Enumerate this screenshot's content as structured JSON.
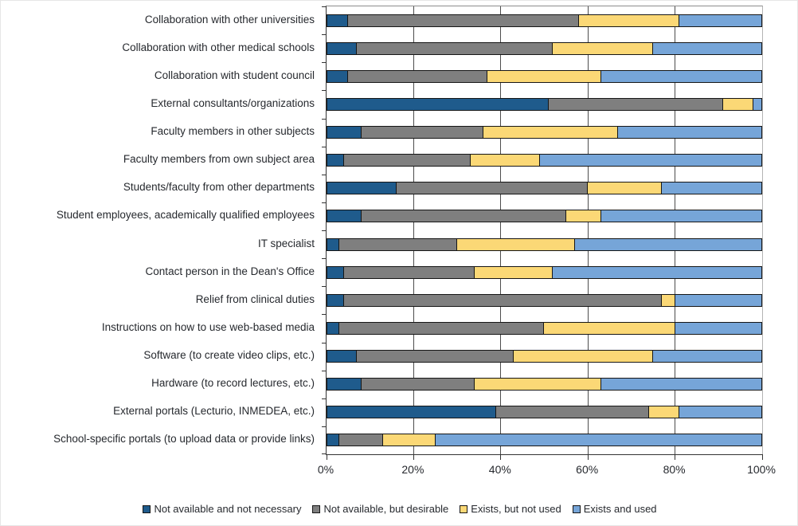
{
  "chart_data": {
    "type": "bar",
    "orientation": "horizontal",
    "stacked": true,
    "title": "",
    "xlabel": "",
    "ylabel": "",
    "xlim": [
      0,
      100
    ],
    "x_tick_labels": [
      "0%",
      "20%",
      "40%",
      "60%",
      "80%",
      "100%"
    ],
    "x_tick_values": [
      0,
      20,
      40,
      60,
      80,
      100
    ],
    "gridlines": [
      20,
      40,
      60,
      80
    ],
    "legend_position": "bottom",
    "categories": [
      "Collaboration with other universities",
      "Collaboration with other medical schools",
      "Collaboration with student council",
      "External consultants/organizations",
      "Faculty members in other subjects",
      "Faculty members from own subject area",
      "Students/faculty from other departments",
      "Student employees, academically qualified employees",
      "IT specialist",
      "Contact person in the Dean's Office",
      "Relief from clinical duties",
      "Instructions on how to use web-based media",
      "Software (to create video clips, etc.)",
      "Hardware (to record lectures, etc.)",
      "External portals (Lecturio, INMEDEA, etc.)",
      "School-specific portals (to upload data or provide links)"
    ],
    "series": [
      {
        "name": "Not available and not necessary",
        "color": "#1F5B8C",
        "values": [
          5,
          7,
          5,
          51,
          8,
          4,
          16,
          8,
          3,
          4,
          4,
          3,
          7,
          8,
          39,
          3
        ]
      },
      {
        "name": "Not available, but desirable",
        "color": "#7F7F7F",
        "values": [
          53,
          45,
          32,
          40,
          28,
          29,
          44,
          47,
          27,
          30,
          73,
          47,
          36,
          26,
          35,
          10
        ]
      },
      {
        "name": "Exists, but not used",
        "color": "#FBD876",
        "values": [
          23,
          23,
          26,
          7,
          31,
          16,
          17,
          8,
          27,
          18,
          3,
          30,
          32,
          29,
          7,
          12
        ]
      },
      {
        "name": "Exists and used",
        "color": "#76A5D8",
        "values": [
          19,
          25,
          37,
          2,
          33,
          51,
          23,
          37,
          43,
          48,
          20,
          20,
          25,
          37,
          19,
          75
        ]
      }
    ]
  }
}
